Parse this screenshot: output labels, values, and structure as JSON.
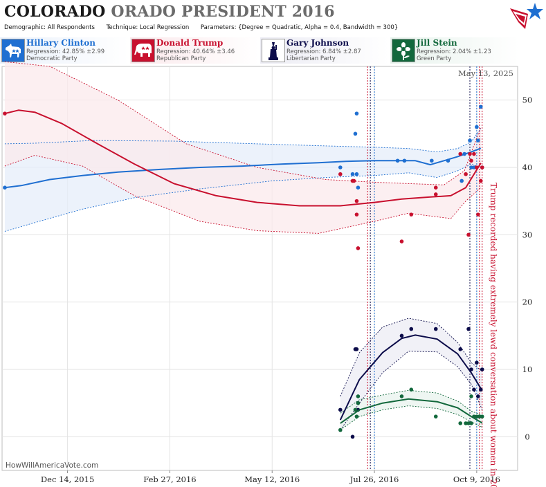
{
  "header": {
    "title_main": "COLORADO",
    "title_sub": "ORADO PRESIDENT 2016",
    "demographic": "Demographic: All Respondents",
    "technique": "Technique: Local Regression",
    "parameters": "Parameters: {Degree = Quadratic, Alpha = 0.4, Bandwidth = 300}"
  },
  "candidates": [
    {
      "name": "Hillary Clinton",
      "regression": "Regression: 42.85% ±2.99",
      "party": "Democratic Party",
      "color": "#1f6fd1",
      "icon": "donkey-icon"
    },
    {
      "name": "Donald Trump",
      "regression": "Regression: 40.64% ±3.46",
      "party": "Republican Party",
      "color": "#c8102e",
      "icon": "elephant-icon"
    },
    {
      "name": "Gary Johnson",
      "regression": "Regression: 6.84% ±2.87",
      "party": "Libertarian Party",
      "color": "#0c0c4a",
      "icon": "statue-of-liberty-icon"
    },
    {
      "name": "Jill Stein",
      "regression": "Regression: 2.04% ±1.23",
      "party": "Green Party",
      "color": "#12683c",
      "icon": "sunflower-icon"
    }
  ],
  "chart_data": {
    "type": "line",
    "date_stamp": "May 13, 2025",
    "watermark": "HowWillAmericaVote.com",
    "annotation": "Trump recorded having extremely lewd conversation about women in 2005",
    "annotation_date": "2016-10-07",
    "ylim": [
      -5,
      55
    ],
    "yticks": [
      0,
      10,
      20,
      30,
      40,
      50
    ],
    "xlim": [
      "2015-10-27",
      "2016-11-08"
    ],
    "xticks": [
      {
        "date": "2015-12-14",
        "label": "Dec 14, 2015"
      },
      {
        "date": "2016-02-27",
        "label": "Feb 27, 2016"
      },
      {
        "date": "2016-05-12",
        "label": "May 12, 2016"
      },
      {
        "date": "2016-07-26",
        "label": "Jul 26, 2016"
      },
      {
        "date": "2016-10-09",
        "label": "Oct 9, 2016"
      }
    ],
    "vertical_lines": [
      {
        "date": "2016-07-21",
        "color": "#c8102e"
      },
      {
        "date": "2016-07-23",
        "color": "#0c0c4a"
      },
      {
        "date": "2016-07-26",
        "color": "#1f6fd1"
      },
      {
        "date": "2016-10-04",
        "color": "#0c0c4a"
      },
      {
        "date": "2016-10-09",
        "color": "#1f6fd1"
      },
      {
        "date": "2016-10-11",
        "color": "#c8102e"
      },
      {
        "date": "2016-10-13",
        "color": "#c8102e"
      }
    ],
    "series": [
      {
        "name": "Hillary Clinton",
        "color": "#1f6fd1",
        "band_fill": "#e6eefa",
        "line": [
          [
            "2015-10-29",
            37.0
          ],
          [
            "2015-11-10",
            37.3
          ],
          [
            "2015-12-01",
            38.2
          ],
          [
            "2015-12-25",
            38.8
          ],
          [
            "2016-01-20",
            39.3
          ],
          [
            "2016-02-20",
            39.7
          ],
          [
            "2016-03-20",
            40.0
          ],
          [
            "2016-04-20",
            40.2
          ],
          [
            "2016-05-20",
            40.5
          ],
          [
            "2016-06-15",
            40.7
          ],
          [
            "2016-07-05",
            40.9
          ],
          [
            "2016-07-26",
            41.0
          ],
          [
            "2016-08-10",
            41.0
          ],
          [
            "2016-08-25",
            41.0
          ],
          [
            "2016-09-05",
            40.4
          ],
          [
            "2016-09-15",
            41.0
          ],
          [
            "2016-09-25",
            41.6
          ],
          [
            "2016-10-05",
            42.3
          ],
          [
            "2016-10-12",
            42.85
          ]
        ],
        "upper": [
          [
            "2015-10-29",
            43.5
          ],
          [
            "2015-11-20",
            43.6
          ],
          [
            "2016-01-01",
            44.0
          ],
          [
            "2016-03-01",
            43.9
          ],
          [
            "2016-05-01",
            43.5
          ],
          [
            "2016-06-20",
            43.2
          ],
          [
            "2016-07-26",
            43.0
          ],
          [
            "2016-08-20",
            42.8
          ],
          [
            "2016-09-10",
            42.3
          ],
          [
            "2016-09-25",
            42.8
          ],
          [
            "2016-10-05",
            43.8
          ],
          [
            "2016-10-12",
            45.8
          ]
        ],
        "lower": [
          [
            "2015-10-29",
            30.5
          ],
          [
            "2015-11-20",
            31.8
          ],
          [
            "2015-12-25",
            33.8
          ],
          [
            "2016-02-01",
            35.5
          ],
          [
            "2016-03-20",
            36.8
          ],
          [
            "2016-05-12",
            38.0
          ],
          [
            "2016-06-20",
            38.5
          ],
          [
            "2016-07-26",
            38.8
          ],
          [
            "2016-08-20",
            39.2
          ],
          [
            "2016-09-10",
            38.5
          ],
          [
            "2016-09-25",
            39.5
          ],
          [
            "2016-10-05",
            40.5
          ],
          [
            "2016-10-12",
            40.0
          ]
        ],
        "points": [
          [
            "2015-10-29",
            37
          ],
          [
            "2016-07-01",
            40
          ],
          [
            "2016-07-10",
            39
          ],
          [
            "2016-07-12",
            45
          ],
          [
            "2016-07-13",
            48
          ],
          [
            "2016-07-13",
            39
          ],
          [
            "2016-07-14",
            37
          ],
          [
            "2016-08-12",
            41
          ],
          [
            "2016-08-17",
            41
          ],
          [
            "2016-09-06",
            41
          ],
          [
            "2016-09-18",
            41
          ],
          [
            "2016-09-28",
            38
          ],
          [
            "2016-09-30",
            42
          ],
          [
            "2016-10-04",
            44
          ],
          [
            "2016-10-05",
            40
          ],
          [
            "2016-10-07",
            40
          ],
          [
            "2016-10-09",
            46
          ],
          [
            "2016-10-10",
            44
          ],
          [
            "2016-10-12",
            49
          ],
          [
            "2016-10-13",
            40
          ]
        ]
      },
      {
        "name": "Donald Trump",
        "color": "#c8102e",
        "band_fill": "#fbe9ec",
        "line": [
          [
            "2015-10-29",
            48.0
          ],
          [
            "2015-11-08",
            48.5
          ],
          [
            "2015-11-20",
            48.2
          ],
          [
            "2015-12-10",
            46.5
          ],
          [
            "2016-01-05",
            43.5
          ],
          [
            "2016-02-01",
            40.5
          ],
          [
            "2016-03-01",
            37.6
          ],
          [
            "2016-04-01",
            35.8
          ],
          [
            "2016-05-01",
            34.8
          ],
          [
            "2016-06-01",
            34.3
          ],
          [
            "2016-07-01",
            34.3
          ],
          [
            "2016-07-26",
            34.8
          ],
          [
            "2016-08-15",
            35.3
          ],
          [
            "2016-09-05",
            35.6
          ],
          [
            "2016-09-20",
            35.8
          ],
          [
            "2016-10-01",
            37.0
          ],
          [
            "2016-10-12",
            40.64
          ]
        ],
        "upper": [
          [
            "2015-10-29",
            55.7
          ],
          [
            "2015-12-01",
            55.0
          ],
          [
            "2016-01-20",
            50.0
          ],
          [
            "2016-03-10",
            43.5
          ],
          [
            "2016-05-01",
            40.0
          ],
          [
            "2016-06-20",
            38.2
          ],
          [
            "2016-07-26",
            37.8
          ],
          [
            "2016-08-20",
            37.6
          ],
          [
            "2016-09-15",
            37.4
          ],
          [
            "2016-09-30",
            39.5
          ],
          [
            "2016-10-12",
            46.0
          ]
        ],
        "lower": [
          [
            "2015-10-29",
            40.2
          ],
          [
            "2015-11-20",
            41.8
          ],
          [
            "2015-12-25",
            40.2
          ],
          [
            "2016-02-01",
            35.8
          ],
          [
            "2016-03-20",
            32.0
          ],
          [
            "2016-05-01",
            30.6
          ],
          [
            "2016-06-15",
            30.2
          ],
          [
            "2016-07-26",
            32.0
          ],
          [
            "2016-08-20",
            33.2
          ],
          [
            "2016-09-20",
            32.4
          ],
          [
            "2016-10-01",
            35.0
          ],
          [
            "2016-10-12",
            37.0
          ]
        ],
        "points": [
          [
            "2015-10-29",
            48
          ],
          [
            "2016-07-01",
            39
          ],
          [
            "2016-07-10",
            38
          ],
          [
            "2016-07-11",
            38
          ],
          [
            "2016-07-13",
            33
          ],
          [
            "2016-07-13",
            35
          ],
          [
            "2016-07-14",
            28
          ],
          [
            "2016-08-15",
            29
          ],
          [
            "2016-08-22",
            33
          ],
          [
            "2016-09-09",
            37
          ],
          [
            "2016-09-09",
            36
          ],
          [
            "2016-09-27",
            42
          ],
          [
            "2016-10-01",
            39
          ],
          [
            "2016-10-04",
            42
          ],
          [
            "2016-10-05",
            41
          ],
          [
            "2016-10-07",
            42
          ],
          [
            "2016-10-09",
            40
          ],
          [
            "2016-10-10",
            33
          ],
          [
            "2016-10-12",
            38
          ],
          [
            "2016-10-13",
            40
          ],
          [
            "2016-10-03",
            30
          ]
        ]
      },
      {
        "name": "Gary Johnson",
        "color": "#0c0c4a",
        "band_fill": "#ececf4",
        "line": [
          [
            "2016-07-01",
            2.5
          ],
          [
            "2016-07-15",
            8.5
          ],
          [
            "2016-08-01",
            12.5
          ],
          [
            "2016-08-15",
            14.6
          ],
          [
            "2016-08-25",
            15.1
          ],
          [
            "2016-09-10",
            14.5
          ],
          [
            "2016-09-25",
            12.3
          ],
          [
            "2016-10-05",
            9.5
          ],
          [
            "2016-10-13",
            6.84
          ]
        ],
        "upper": [
          [
            "2016-07-01",
            6.0
          ],
          [
            "2016-07-15",
            12.5
          ],
          [
            "2016-08-01",
            16.3
          ],
          [
            "2016-08-20",
            17.6
          ],
          [
            "2016-09-10",
            16.8
          ],
          [
            "2016-09-25",
            14.0
          ],
          [
            "2016-10-05",
            11.0
          ],
          [
            "2016-10-13",
            9.7
          ]
        ],
        "lower": [
          [
            "2016-07-01",
            1.0
          ],
          [
            "2016-07-15",
            5.0
          ],
          [
            "2016-08-01",
            9.5
          ],
          [
            "2016-08-20",
            12.7
          ],
          [
            "2016-09-10",
            12.6
          ],
          [
            "2016-09-25",
            10.4
          ],
          [
            "2016-10-05",
            7.8
          ],
          [
            "2016-10-13",
            4.0
          ]
        ],
        "points": [
          [
            "2016-07-01",
            4
          ],
          [
            "2016-07-10",
            0
          ],
          [
            "2016-07-12",
            13
          ],
          [
            "2016-07-13",
            13
          ],
          [
            "2016-07-14",
            4
          ],
          [
            "2016-07-14",
            5
          ],
          [
            "2016-08-15",
            15
          ],
          [
            "2016-08-22",
            16
          ],
          [
            "2016-09-09",
            16
          ],
          [
            "2016-09-27",
            13
          ],
          [
            "2016-10-03",
            16
          ],
          [
            "2016-10-05",
            10
          ],
          [
            "2016-10-07",
            7
          ],
          [
            "2016-10-09",
            11
          ],
          [
            "2016-10-10",
            6
          ],
          [
            "2016-10-12",
            7
          ],
          [
            "2016-10-13",
            10
          ]
        ]
      },
      {
        "name": "Jill Stein",
        "color": "#12683c",
        "band_fill": "#e8f3ed",
        "line": [
          [
            "2016-07-01",
            2.0
          ],
          [
            "2016-07-15",
            4.0
          ],
          [
            "2016-08-01",
            5.0
          ],
          [
            "2016-08-20",
            5.6
          ],
          [
            "2016-09-10",
            5.2
          ],
          [
            "2016-09-25",
            4.3
          ],
          [
            "2016-10-05",
            3.0
          ],
          [
            "2016-10-13",
            2.04
          ]
        ],
        "upper": [
          [
            "2016-07-01",
            3.5
          ],
          [
            "2016-07-15",
            5.5
          ],
          [
            "2016-08-01",
            6.2
          ],
          [
            "2016-08-20",
            6.9
          ],
          [
            "2016-09-10",
            6.5
          ],
          [
            "2016-09-25",
            5.3
          ],
          [
            "2016-10-05",
            3.8
          ],
          [
            "2016-10-13",
            3.2
          ]
        ],
        "lower": [
          [
            "2016-07-01",
            1.0
          ],
          [
            "2016-07-15",
            3.0
          ],
          [
            "2016-08-01",
            4.0
          ],
          [
            "2016-08-20",
            4.6
          ],
          [
            "2016-09-10",
            4.2
          ],
          [
            "2016-09-25",
            3.3
          ],
          [
            "2016-10-05",
            2.2
          ],
          [
            "2016-10-13",
            1.4
          ]
        ],
        "points": [
          [
            "2016-07-01",
            1
          ],
          [
            "2016-07-12",
            4
          ],
          [
            "2016-07-13",
            3
          ],
          [
            "2016-07-14",
            6
          ],
          [
            "2016-07-14",
            5
          ],
          [
            "2016-08-15",
            6
          ],
          [
            "2016-08-22",
            7
          ],
          [
            "2016-09-09",
            3
          ],
          [
            "2016-09-27",
            2
          ],
          [
            "2016-10-01",
            2
          ],
          [
            "2016-10-03",
            2
          ],
          [
            "2016-10-05",
            6
          ],
          [
            "2016-10-07",
            3
          ],
          [
            "2016-10-09",
            3
          ],
          [
            "2016-10-11",
            3
          ],
          [
            "2016-10-13",
            3
          ],
          [
            "2016-10-05",
            2
          ]
        ]
      }
    ]
  }
}
